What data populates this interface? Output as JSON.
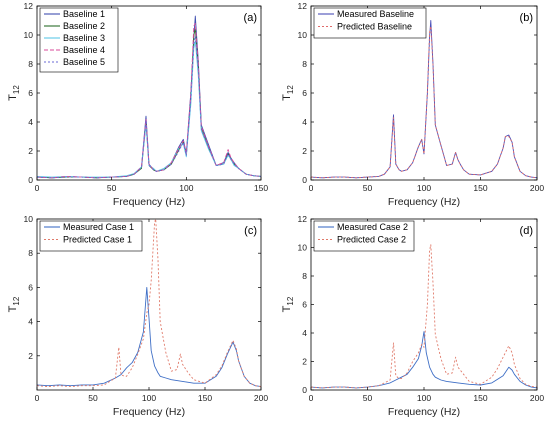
{
  "chart_data": [
    {
      "panel": "(a)",
      "type": "line",
      "xlabel": "Frequency (Hz)",
      "ylabel": "T",
      "ylabel_sub": "12",
      "xlim": [
        0,
        150
      ],
      "ylim": [
        0,
        12
      ],
      "xticks": [
        0,
        50,
        100,
        150
      ],
      "yticks": [
        0,
        2,
        4,
        6,
        8,
        10,
        12
      ],
      "legend_position": "top-left",
      "series": [
        {
          "name": "Baseline 1",
          "color": "#3f4fb0",
          "dash": "",
          "x": [
            0,
            10,
            20,
            30,
            40,
            50,
            60,
            65,
            70,
            73,
            75,
            78,
            80,
            85,
            90,
            95,
            98,
            100,
            103,
            105,
            106,
            108,
            110,
            115,
            120,
            125,
            128,
            130,
            132,
            135,
            140,
            145,
            150
          ],
          "y": [
            0.2,
            0.15,
            0.25,
            0.2,
            0.15,
            0.2,
            0.25,
            0.4,
            0.9,
            4.4,
            1.1,
            0.7,
            0.6,
            0.7,
            1.2,
            2.3,
            2.8,
            1.8,
            6.0,
            9.8,
            11.3,
            8.2,
            3.8,
            2.4,
            1.0,
            1.2,
            1.9,
            1.5,
            1.2,
            0.8,
            0.4,
            0.3,
            0.25
          ]
        },
        {
          "name": "Baseline 2",
          "color": "#2a6d2a",
          "dash": "",
          "x": [
            0,
            10,
            20,
            30,
            40,
            50,
            60,
            65,
            70,
            73,
            75,
            78,
            80,
            85,
            90,
            95,
            98,
            100,
            103,
            105,
            106,
            108,
            110,
            115,
            120,
            125,
            128,
            130,
            132,
            135,
            140,
            145,
            150
          ],
          "y": [
            0.2,
            0.15,
            0.2,
            0.2,
            0.15,
            0.2,
            0.25,
            0.4,
            0.8,
            4.0,
            1.0,
            0.7,
            0.6,
            0.7,
            1.1,
            2.1,
            2.6,
            1.7,
            5.6,
            10.0,
            10.4,
            7.8,
            3.6,
            2.2,
            1.0,
            1.1,
            1.8,
            1.4,
            1.1,
            0.8,
            0.4,
            0.3,
            0.25
          ]
        },
        {
          "name": "Baseline 3",
          "color": "#5ec8e6",
          "dash": "",
          "x": [
            0,
            10,
            20,
            30,
            40,
            50,
            60,
            65,
            70,
            73,
            75,
            78,
            80,
            85,
            90,
            95,
            98,
            100,
            103,
            105,
            106,
            108,
            110,
            115,
            120,
            125,
            128,
            130,
            132,
            135,
            140,
            145,
            150
          ],
          "y": [
            0.25,
            0.2,
            0.25,
            0.2,
            0.2,
            0.2,
            0.3,
            0.45,
            0.9,
            3.8,
            1.0,
            0.8,
            0.6,
            0.8,
            1.2,
            2.2,
            2.5,
            1.6,
            5.2,
            9.1,
            9.6,
            7.2,
            3.4,
            2.1,
            1.0,
            1.1,
            1.7,
            1.4,
            1.0,
            0.8,
            0.4,
            0.3,
            0.25
          ]
        },
        {
          "name": "Baseline 4",
          "color": "#d94a9a",
          "dash": "4,2",
          "x": [
            0,
            10,
            20,
            30,
            40,
            50,
            60,
            65,
            70,
            73,
            75,
            78,
            80,
            85,
            90,
            95,
            98,
            100,
            103,
            105,
            106,
            108,
            110,
            115,
            120,
            125,
            128,
            130,
            132,
            135,
            140,
            145,
            150
          ],
          "y": [
            0.2,
            0.15,
            0.25,
            0.2,
            0.15,
            0.2,
            0.25,
            0.4,
            0.9,
            4.2,
            1.1,
            0.7,
            0.6,
            0.7,
            1.2,
            2.2,
            2.7,
            1.8,
            5.9,
            10.6,
            10.8,
            8.0,
            3.7,
            2.3,
            1.0,
            1.2,
            2.1,
            1.5,
            1.2,
            0.8,
            0.4,
            0.3,
            0.25
          ]
        },
        {
          "name": "Baseline 5",
          "color": "#6a6ad6",
          "dash": "2,2",
          "x": [
            0,
            10,
            20,
            30,
            40,
            50,
            60,
            65,
            70,
            73,
            75,
            78,
            80,
            85,
            90,
            95,
            98,
            100,
            103,
            105,
            106,
            108,
            110,
            115,
            120,
            125,
            128,
            130,
            132,
            135,
            140,
            145,
            150
          ],
          "y": [
            0.2,
            0.15,
            0.2,
            0.2,
            0.15,
            0.2,
            0.25,
            0.4,
            0.85,
            4.1,
            1.0,
            0.7,
            0.6,
            0.7,
            1.1,
            2.0,
            2.6,
            1.7,
            5.5,
            9.4,
            9.9,
            7.6,
            3.5,
            2.2,
            1.0,
            1.1,
            1.8,
            1.4,
            1.1,
            0.8,
            0.4,
            0.3,
            0.25
          ]
        }
      ]
    },
    {
      "panel": "(b)",
      "type": "line",
      "xlabel": "Frequency (Hz)",
      "ylabel": "T",
      "ylabel_sub": "12",
      "xlim": [
        0,
        200
      ],
      "ylim": [
        0,
        12
      ],
      "xticks": [
        0,
        50,
        100,
        150,
        200
      ],
      "yticks": [
        0,
        2,
        4,
        6,
        8,
        10,
        12
      ],
      "legend_position": "top-left",
      "series": [
        {
          "name": "Measured Baseline",
          "color": "#4a4fb8",
          "dash": "",
          "x": [
            0,
            10,
            20,
            30,
            40,
            50,
            60,
            65,
            70,
            73,
            75,
            78,
            80,
            85,
            90,
            95,
            98,
            100,
            103,
            105,
            106,
            108,
            110,
            115,
            120,
            125,
            128,
            130,
            132,
            135,
            140,
            150,
            160,
            165,
            170,
            172,
            175,
            178,
            180,
            185,
            190,
            195,
            200
          ],
          "y": [
            0.2,
            0.15,
            0.2,
            0.2,
            0.15,
            0.2,
            0.25,
            0.4,
            0.9,
            4.5,
            1.1,
            0.7,
            0.6,
            0.7,
            1.2,
            2.3,
            2.8,
            1.8,
            6.0,
            9.9,
            11.0,
            8.0,
            3.8,
            2.4,
            1.0,
            1.1,
            1.9,
            1.4,
            1.1,
            0.7,
            0.4,
            0.35,
            0.6,
            1.1,
            2.2,
            3.0,
            3.1,
            2.6,
            1.6,
            0.6,
            0.3,
            0.2,
            0.15
          ]
        },
        {
          "name": "Predicted Baseline",
          "color": "#e06a6a",
          "dash": "2,2",
          "x": [
            0,
            10,
            20,
            30,
            40,
            50,
            60,
            65,
            70,
            73,
            75,
            78,
            80,
            85,
            90,
            95,
            98,
            100,
            103,
            105,
            106,
            108,
            110,
            115,
            120,
            125,
            128,
            130,
            132,
            135,
            140,
            150,
            160,
            165,
            170,
            172,
            175,
            178,
            180,
            185,
            190,
            195,
            200
          ],
          "y": [
            0.2,
            0.15,
            0.2,
            0.2,
            0.15,
            0.2,
            0.25,
            0.4,
            0.9,
            4.3,
            1.1,
            0.7,
            0.6,
            0.7,
            1.2,
            2.3,
            2.8,
            1.8,
            6.1,
            10.2,
            10.6,
            7.9,
            3.8,
            2.4,
            1.0,
            1.1,
            1.9,
            1.4,
            1.1,
            0.7,
            0.4,
            0.35,
            0.6,
            1.1,
            2.2,
            3.0,
            3.0,
            2.6,
            1.6,
            0.6,
            0.3,
            0.2,
            0.15
          ]
        }
      ]
    },
    {
      "panel": "(c)",
      "type": "line",
      "xlabel": "Frequency (Hz)",
      "ylabel": "T",
      "ylabel_sub": "12",
      "xlim": [
        0,
        200
      ],
      "ylim": [
        0,
        10
      ],
      "xticks": [
        0,
        50,
        100,
        150,
        200
      ],
      "yticks": [
        2,
        4,
        6,
        8,
        10
      ],
      "legend_position": "top-left",
      "series": [
        {
          "name": "Measured Case 1",
          "color": "#3f6fc6",
          "dash": "",
          "x": [
            0,
            10,
            20,
            30,
            40,
            50,
            60,
            70,
            75,
            80,
            85,
            90,
            95,
            98,
            100,
            102,
            105,
            108,
            110,
            115,
            120,
            130,
            140,
            150,
            160,
            165,
            170,
            175,
            178,
            180,
            185,
            190,
            195,
            200
          ],
          "y": [
            0.3,
            0.25,
            0.3,
            0.25,
            0.3,
            0.3,
            0.4,
            0.7,
            0.9,
            1.3,
            1.6,
            2.2,
            3.4,
            6.0,
            4.2,
            2.3,
            1.4,
            1.0,
            0.8,
            0.7,
            0.6,
            0.5,
            0.4,
            0.4,
            0.8,
            1.3,
            2.1,
            2.8,
            2.3,
            1.7,
            0.8,
            0.4,
            0.25,
            0.2
          ]
        },
        {
          "name": "Predicted Case 1",
          "color": "#e07a6a",
          "dash": "2,2",
          "x": [
            0,
            10,
            20,
            30,
            40,
            50,
            60,
            70,
            73,
            75,
            78,
            80,
            85,
            90,
            95,
            98,
            100,
            102,
            105,
            106,
            108,
            110,
            115,
            120,
            125,
            128,
            130,
            135,
            140,
            150,
            160,
            165,
            170,
            175,
            178,
            180,
            185,
            190,
            195,
            200
          ],
          "y": [
            0.25,
            0.2,
            0.25,
            0.2,
            0.25,
            0.25,
            0.3,
            0.7,
            2.5,
            0.9,
            0.8,
            0.8,
            1.3,
            2.1,
            3.0,
            4.5,
            5.0,
            6.4,
            9.8,
            10.0,
            7.6,
            4.0,
            2.2,
            1.1,
            1.2,
            2.1,
            1.5,
            1.0,
            0.6,
            0.4,
            0.9,
            1.4,
            2.2,
            2.9,
            2.4,
            1.7,
            0.8,
            0.4,
            0.25,
            0.2
          ]
        }
      ]
    },
    {
      "panel": "(d)",
      "type": "line",
      "xlabel": "Frequency (Hz)",
      "ylabel": "T",
      "ylabel_sub": "12",
      "xlim": [
        0,
        200
      ],
      "ylim": [
        0,
        12
      ],
      "xticks": [
        0,
        50,
        100,
        150,
        200
      ],
      "yticks": [
        0,
        2,
        4,
        6,
        8,
        10,
        12
      ],
      "legend_position": "top-left",
      "series": [
        {
          "name": "Measured Case 2",
          "color": "#3f6fc6",
          "dash": "",
          "x": [
            0,
            10,
            20,
            30,
            40,
            50,
            60,
            70,
            75,
            80,
            85,
            90,
            95,
            98,
            100,
            102,
            105,
            108,
            110,
            115,
            120,
            130,
            140,
            150,
            160,
            170,
            175,
            178,
            180,
            185,
            190,
            195,
            200
          ],
          "y": [
            0.2,
            0.15,
            0.2,
            0.2,
            0.15,
            0.2,
            0.3,
            0.5,
            0.7,
            0.9,
            1.1,
            1.6,
            2.2,
            3.1,
            4.1,
            2.6,
            1.6,
            1.1,
            0.9,
            0.7,
            0.6,
            0.5,
            0.4,
            0.35,
            0.5,
            1.0,
            1.6,
            1.4,
            1.1,
            0.6,
            0.35,
            0.2,
            0.15
          ]
        },
        {
          "name": "Predicted Case 2",
          "color": "#e07a6a",
          "dash": "2,2",
          "x": [
            0,
            10,
            20,
            30,
            40,
            50,
            60,
            70,
            73,
            75,
            78,
            80,
            85,
            90,
            95,
            98,
            100,
            103,
            105,
            106,
            108,
            110,
            115,
            120,
            125,
            128,
            130,
            135,
            140,
            150,
            160,
            165,
            170,
            175,
            178,
            180,
            185,
            190,
            195,
            200
          ],
          "y": [
            0.2,
            0.15,
            0.2,
            0.2,
            0.15,
            0.2,
            0.3,
            0.7,
            3.3,
            1.0,
            0.8,
            0.8,
            1.2,
            2.0,
            2.6,
            3.2,
            3.0,
            6.0,
            9.8,
            10.2,
            7.5,
            3.9,
            2.2,
            1.1,
            1.2,
            2.3,
            1.6,
            1.1,
            0.6,
            0.4,
            0.9,
            1.5,
            2.3,
            3.1,
            2.6,
            1.8,
            0.8,
            0.4,
            0.25,
            0.2
          ]
        }
      ]
    }
  ]
}
